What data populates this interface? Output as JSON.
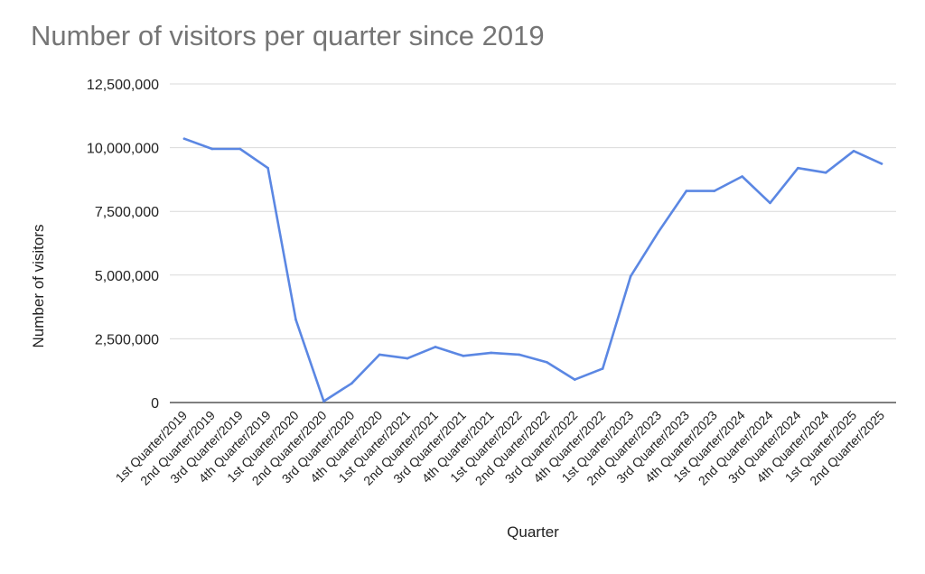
{
  "chart_data": {
    "type": "line",
    "title": "Number of visitors per quarter since 2019",
    "xlabel": "Quarter",
    "ylabel": "Number of visitors",
    "ylim": [
      0,
      12500000
    ],
    "yticks": [
      0,
      2500000,
      5000000,
      7500000,
      10000000,
      12500000
    ],
    "ytick_labels": [
      "0",
      "2,500,000",
      "5,000,000",
      "7,500,000",
      "10,000,000",
      "12,500,000"
    ],
    "grid": true,
    "legend": "none",
    "line_color": "#5b87e3",
    "categories": [
      "1st Quarter/2019",
      "2nd Quarter/2019",
      "3rd Quarter/2019",
      "4th Quarter/2019",
      "1st Quarter/2020",
      "2nd Quarter/2020",
      "3rd Quarter/2020",
      "4th Quarter/2020",
      "1st Quarter/2021",
      "2nd Quarter/2021",
      "3rd Quarter/2021",
      "4th Quarter/2021",
      "1st Quarter/2022",
      "2nd Quarter/2022",
      "3rd Quarter/2022",
      "4th Quarter/2022",
      "1st Quarter/2023",
      "2nd Quarter/2023",
      "3rd Quarter/2023",
      "4th Quarter/2023",
      "1st Quarter/2024",
      "2nd Quarter/2024",
      "3rd Quarter/2024",
      "4th Quarter/2024",
      "1st Quarter/2025",
      "2nd Quarter/2025"
    ],
    "series": [
      {
        "values": [
          10350000,
          9950000,
          9950000,
          9200000,
          3250000,
          50000,
          750000,
          1880000,
          1730000,
          2180000,
          1830000,
          1950000,
          1880000,
          1580000,
          900000,
          1330000,
          4950000,
          6700000,
          8300000,
          8300000,
          8870000,
          7830000,
          9200000,
          9020000,
          9870000,
          9370000
        ]
      }
    ]
  }
}
